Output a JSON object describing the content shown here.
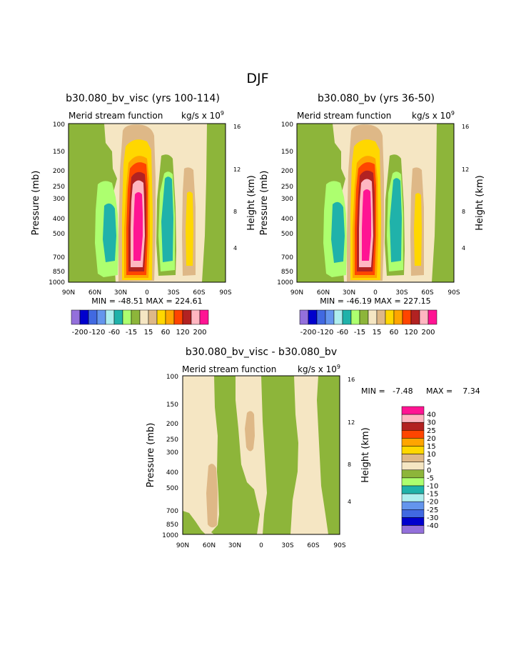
{
  "page_title": "DJF",
  "colors": {
    "-200": "#9370DB",
    "-120": "#0000CD",
    "-100": "#4169E1",
    "-80": "#6495ED",
    "-60": "#AFEEEE",
    "-40": "#20B2AA",
    "-20": "#ADFF6F",
    "-15": "#8DB53A",
    "0": "#F5E6C3",
    "15": "#DEB887",
    "40": "#FFD700",
    "60": "#FFA500",
    "80": "#FF4500",
    "120": "#B22222",
    "160": "#FFB6C1",
    "200": "#FF1493"
  },
  "chart_data": [
    {
      "type": "contour",
      "title": "b30.080_bv_visc (yrs 100-114)",
      "subtitle": "Merid stream function",
      "units": "kg/s x 10",
      "units_exp": "9",
      "xlabel": "",
      "ylabel": "Pressure (mb)",
      "ylabel_right": "Height (km)",
      "x_ticks": [
        "90N",
        "60N",
        "30N",
        "0",
        "30S",
        "60S",
        "90S"
      ],
      "y_ticks": [
        "100",
        "150",
        "200",
        "250",
        "300",
        "400",
        "500",
        "700",
        "850",
        "1000"
      ],
      "right_ticks": [
        "16",
        "12",
        "8",
        "4"
      ],
      "stats_text": "MIN = -48.51   MAX = 224.61",
      "min": -48.51,
      "max": 224.61,
      "colorbar_labels": [
        "-200",
        "-120",
        "-60",
        "-15",
        "15",
        "60",
        "120",
        "200"
      ]
    },
    {
      "type": "contour",
      "title": "b30.080_bv (yrs 36-50)",
      "subtitle": "Merid stream function",
      "units": "kg/s x 10",
      "units_exp": "9",
      "xlabel": "",
      "ylabel": "Pressure (mb)",
      "ylabel_right": "Height (km)",
      "x_ticks": [
        "90N",
        "60N",
        "30N",
        "0",
        "30S",
        "60S",
        "90S"
      ],
      "y_ticks": [
        "100",
        "150",
        "200",
        "250",
        "300",
        "400",
        "500",
        "700",
        "850",
        "1000"
      ],
      "right_ticks": [
        "16",
        "12",
        "8",
        "4"
      ],
      "stats_text": "MIN = -46.19   MAX = 227.15",
      "min": -46.19,
      "max": 227.15,
      "colorbar_labels": [
        "-200",
        "-120",
        "-60",
        "-15",
        "15",
        "60",
        "120",
        "200"
      ]
    },
    {
      "type": "contour",
      "title": "b30.080_bv_visc - b30.080_bv",
      "subtitle": "Merid stream function",
      "units": "kg/s x 10",
      "units_exp": "9",
      "xlabel": "",
      "ylabel": "Pressure (mb)",
      "ylabel_right": "Height (km)",
      "x_ticks": [
        "90N",
        "60N",
        "30N",
        "0",
        "30S",
        "60S",
        "90S"
      ],
      "y_ticks": [
        "100",
        "150",
        "200",
        "250",
        "300",
        "400",
        "500",
        "700",
        "850",
        "1000"
      ],
      "right_ticks": [
        "16",
        "12",
        "8",
        "4"
      ],
      "stats_min_text": "MIN =   -7.48",
      "stats_max_text": "MAX =    7.34",
      "min": -7.48,
      "max": 7.34,
      "colorbar_labels": [
        "40",
        "30",
        "25",
        "20",
        "15",
        "10",
        "5",
        "0",
        "-5",
        "-10",
        "-15",
        "-20",
        "-25",
        "-30",
        "-40"
      ],
      "colorbar_colors": [
        "#FF1493",
        "#FFB6C1",
        "#B22222",
        "#FF4500",
        "#FFA500",
        "#FFD700",
        "#DEB887",
        "#F5E6C3",
        "#8DB53A",
        "#ADFF6F",
        "#20B2AA",
        "#AFEEEE",
        "#6495ED",
        "#4169E1",
        "#0000CD",
        "#9370DB"
      ]
    }
  ]
}
